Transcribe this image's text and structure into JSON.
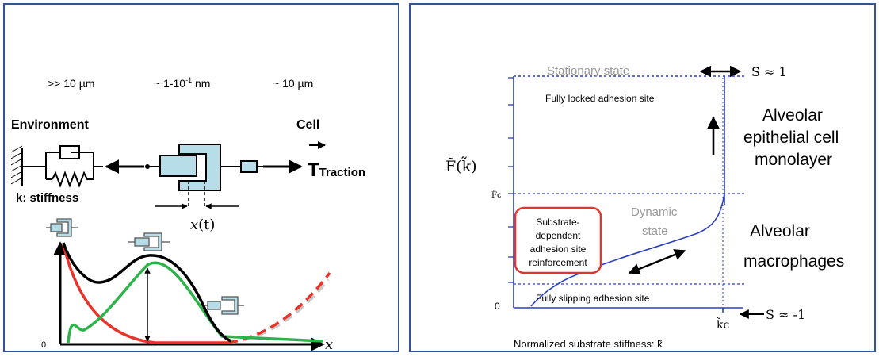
{
  "left_panel": {
    "scale_env": ">> 10 µm",
    "scale_bond": "~ 1-10",
    "scale_bond_exp": "-1",
    "scale_bond_unit": " nm",
    "scale_cell": "~ 10 µm",
    "environment_label": "Environment",
    "cell_label": "Cell",
    "traction_T": "T",
    "traction_sub": "Traction",
    "stiffness_label": "k: stiffness",
    "displacement_x": "x",
    "displacement_t": "(t)",
    "plot_origin": "0",
    "plot_x_axis": "x",
    "colors": {
      "frame": "#2f5597",
      "piston": "#b7dde8",
      "green": "#2db34a",
      "red": "#e8332a",
      "grey": "#c8c8c8"
    }
  },
  "right_panel": {
    "stationary_state": "Stationary state",
    "s_top": "S ≈ 1",
    "s_bottom": "S ≈ -1",
    "fully_locked": "Fully locked adhesion site",
    "fully_slipping": "Fully slipping adhesion site",
    "dynamic_state_line1": "Dynamic",
    "dynamic_state_line2": "state",
    "box_line1": "Substrate-",
    "box_line2": "dependent",
    "box_line3": "adhesion site",
    "box_line4": "reinforcement",
    "y_axis_label": "F̃(k̃)",
    "y_tick_fc": "F̃c",
    "origin": "0",
    "x_tick_kc": "k̃c",
    "x_axis_label": "Normalized substrate stiffness: k̃",
    "alveolar_epithelial_line1": "Alveolar",
    "alveolar_epithelial_line2": "epithelial cell",
    "alveolar_epithelial_line3": "monolayer",
    "alveolar_macrophages_line1": "Alveolar",
    "alveolar_macrophages_line2": "macrophages",
    "colors": {
      "axis": "#2b3fbf",
      "curve": "#2b3fbf",
      "box": "#e0362c",
      "dotted": "#2b3fbf"
    }
  }
}
